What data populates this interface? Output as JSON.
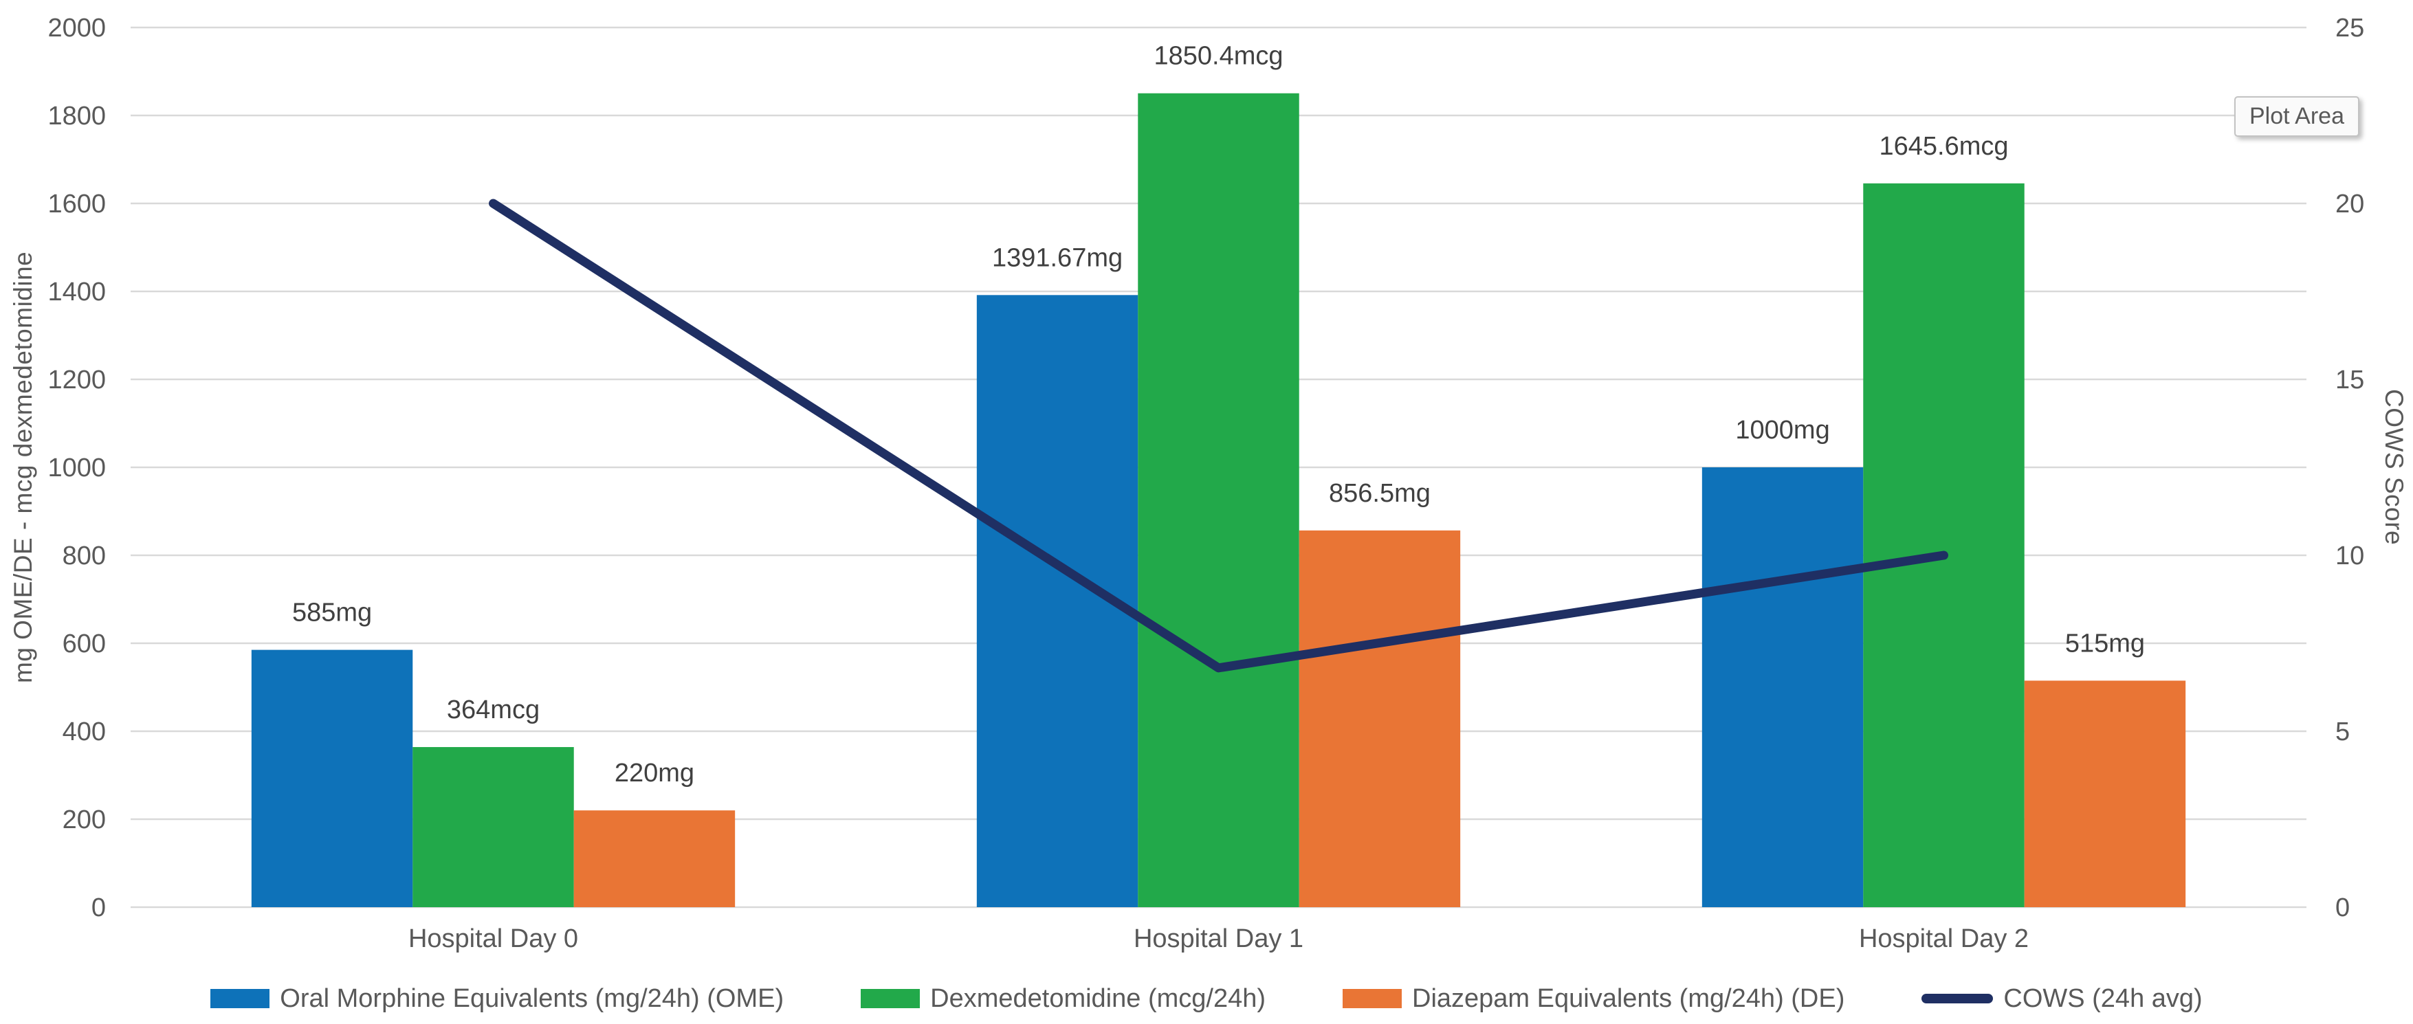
{
  "chart_data": {
    "type": "combo-bar-line",
    "categories": [
      "Hospital Day 0",
      "Hospital Day 1",
      "Hospital Day 2"
    ],
    "series": [
      {
        "name": "Oral Morphine Equivalents (mg/24h) (OME)",
        "type": "bar",
        "axis": "left",
        "color": "#0E72B9",
        "values": [
          585,
          1391.67,
          1000
        ],
        "data_labels": [
          "585mg",
          "1391.67mg",
          "1000mg"
        ]
      },
      {
        "name": "Dexmedetomidine (mcg/24h)",
        "type": "bar",
        "axis": "left",
        "color": "#22A94A",
        "values": [
          364,
          1850.4,
          1645.6
        ],
        "data_labels": [
          "364mcg",
          "1850.4mcg",
          "1645.6mcg"
        ]
      },
      {
        "name": "Diazepam Equivalents (mg/24h) (DE)",
        "type": "bar",
        "axis": "left",
        "color": "#E97535",
        "values": [
          220,
          856.5,
          515
        ],
        "data_labels": [
          "220mg",
          "856.5mg",
          "515mg"
        ]
      },
      {
        "name": "COWS (24h avg)",
        "type": "line",
        "axis": "right",
        "color": "#1F2F63",
        "values": [
          20,
          6.8,
          10
        ],
        "data_labels": []
      }
    ],
    "left_axis": {
      "title": "mg OME/DE - mcg dexmedetomidine",
      "min": 0,
      "max": 2000,
      "step": 200,
      "tick_labels": [
        "0",
        "200",
        "400",
        "600",
        "800",
        "1000",
        "1200",
        "1400",
        "1600",
        "1800",
        "2000"
      ]
    },
    "right_axis": {
      "title": "COWS Score",
      "min": 0,
      "max": 25,
      "step": 5,
      "tick_labels": [
        "0",
        "5",
        "10",
        "15",
        "20",
        "25"
      ]
    },
    "grid": "horizontal",
    "legend_position": "bottom",
    "plot_area_tooltip": "Plot Area",
    "colors": {
      "gridline": "#D9D9D9",
      "axis_text": "#595959",
      "data_label_text": "#404040",
      "background": "#FFFFFF"
    }
  }
}
